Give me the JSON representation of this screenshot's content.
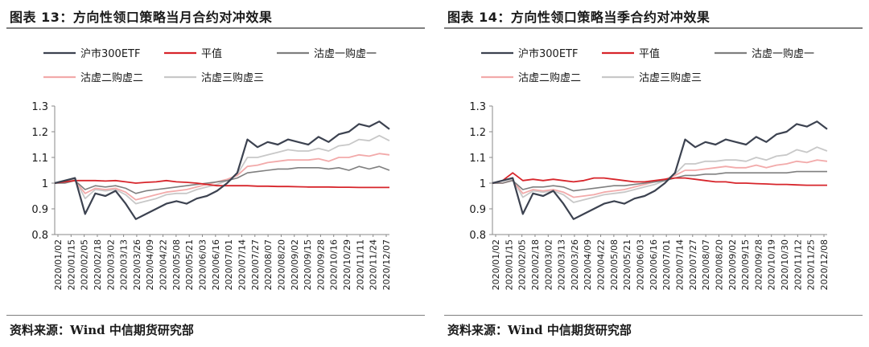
{
  "colors": {
    "hs300": "#3c4250",
    "flat": "#d7252b",
    "c1": "#7f7f7f",
    "c2": "#f2aaaa",
    "c3": "#c8c8c8",
    "rule": "#7f7f7f"
  },
  "source_text": "资料来源：Wind 中信期货研究部",
  "chart_data": [
    {
      "type": "line",
      "title": "图表 13：方向性领口策略当月合约对冲效果",
      "ylim": [
        0.8,
        1.3
      ],
      "yticks": [
        "1.3",
        "1.2",
        "1.1",
        "1",
        "0.9",
        "0.8"
      ],
      "x_tick_labels": [
        "2020/01/02",
        "2020/01/15",
        "2020/02/05",
        "2020/02/18",
        "2020/03/02",
        "2020/03/13",
        "2020/03/26",
        "2020/04/09",
        "2020/04/22",
        "2020/05/08",
        "2020/05/21",
        "2020/06/03",
        "2020/06/16",
        "2020/07/01",
        "2020/07/14",
        "2020/07/27",
        "2020/08/07",
        "2020/08/20",
        "2020/09/02",
        "2020/09/15",
        "2020/09/28",
        "2020/10/16",
        "2020/10/29",
        "2020/11/11",
        "2020/11/24",
        "2020/12/07"
      ],
      "legend": [
        "沪市300ETF",
        "平值",
        "沽虚一购虚一",
        "沽虚二购虚二",
        "沽虚三购虚三"
      ],
      "series": [
        {
          "name": "沪市300ETF",
          "values": [
            1.0,
            1.01,
            1.02,
            0.88,
            0.96,
            0.95,
            0.97,
            0.92,
            0.86,
            0.88,
            0.9,
            0.92,
            0.93,
            0.92,
            0.94,
            0.95,
            0.97,
            1.0,
            1.04,
            1.17,
            1.14,
            1.16,
            1.15,
            1.17,
            1.16,
            1.15,
            1.18,
            1.16,
            1.19,
            1.2,
            1.23,
            1.22,
            1.24,
            1.21
          ]
        },
        {
          "name": "平值",
          "values": [
            1.0,
            1.005,
            1.01,
            1.01,
            1.01,
            1.008,
            1.01,
            1.005,
            1.0,
            1.003,
            1.005,
            1.01,
            1.005,
            1.003,
            1.0,
            0.995,
            0.99,
            0.99,
            0.99,
            0.99,
            0.988,
            0.988,
            0.987,
            0.987,
            0.986,
            0.985,
            0.985,
            0.985,
            0.984,
            0.984,
            0.983,
            0.983,
            0.983,
            0.983
          ]
        },
        {
          "name": "沽虚一购虚一",
          "values": [
            1.0,
            1.0,
            1.01,
            0.975,
            0.99,
            0.985,
            0.99,
            0.98,
            0.96,
            0.97,
            0.975,
            0.98,
            0.985,
            0.99,
            0.995,
            1.0,
            1.005,
            1.01,
            1.02,
            1.04,
            1.045,
            1.05,
            1.055,
            1.055,
            1.06,
            1.06,
            1.06,
            1.055,
            1.06,
            1.05,
            1.065,
            1.055,
            1.065,
            1.05
          ]
        },
        {
          "name": "沽虚二购虚二",
          "values": [
            1.0,
            1.005,
            1.01,
            0.96,
            0.98,
            0.975,
            0.98,
            0.965,
            0.935,
            0.945,
            0.955,
            0.965,
            0.97,
            0.975,
            0.985,
            0.995,
            1.005,
            1.015,
            1.03,
            1.065,
            1.07,
            1.08,
            1.085,
            1.09,
            1.09,
            1.09,
            1.095,
            1.085,
            1.1,
            1.1,
            1.11,
            1.105,
            1.115,
            1.11
          ]
        },
        {
          "name": "沽虚三购虚三",
          "values": [
            1.0,
            1.005,
            1.015,
            0.94,
            0.975,
            0.97,
            0.975,
            0.955,
            0.92,
            0.93,
            0.94,
            0.955,
            0.96,
            0.96,
            0.975,
            0.985,
            0.995,
            1.01,
            1.035,
            1.1,
            1.1,
            1.11,
            1.12,
            1.13,
            1.125,
            1.125,
            1.135,
            1.125,
            1.145,
            1.15,
            1.17,
            1.165,
            1.185,
            1.165
          ]
        }
      ]
    },
    {
      "type": "line",
      "title": "图表 14：方向性领口策略当季合约对冲效果",
      "ylim": [
        0.8,
        1.3
      ],
      "yticks": [
        "1.3",
        "1.2",
        "1.1",
        "1",
        "0.9",
        "0.8"
      ],
      "x_tick_labels": [
        "2020/01/02",
        "2020/01/15",
        "2020/02/05",
        "2020/02/18",
        "2020/03/02",
        "2020/03/13",
        "2020/03/26",
        "2020/04/09",
        "2020/04/22",
        "2020/05/08",
        "2020/05/21",
        "2020/06/03",
        "2020/06/16",
        "2020/07/01",
        "2020/07/14",
        "2020/07/27",
        "2020/08/07",
        "2020/08/20",
        "2020/09/02",
        "2020/09/15",
        "2020/09/28",
        "2020/10/19",
        "2020/10/30",
        "2020/11/12",
        "2020/11/25",
        "2020/12/08"
      ],
      "legend": [
        "沪市300ETF",
        "平值",
        "沽虚一购虚一",
        "沽虚二购虚二",
        "沽虚三购虚三"
      ],
      "series": [
        {
          "name": "沪市300ETF",
          "values": [
            1.0,
            1.01,
            1.02,
            0.88,
            0.96,
            0.95,
            0.97,
            0.92,
            0.86,
            0.88,
            0.9,
            0.92,
            0.93,
            0.92,
            0.94,
            0.95,
            0.97,
            1.0,
            1.04,
            1.17,
            1.14,
            1.16,
            1.15,
            1.17,
            1.16,
            1.15,
            1.18,
            1.16,
            1.19,
            1.2,
            1.23,
            1.22,
            1.24,
            1.21
          ]
        },
        {
          "name": "平值",
          "values": [
            1.0,
            1.01,
            1.04,
            1.01,
            1.015,
            1.01,
            1.015,
            1.01,
            1.005,
            1.01,
            1.02,
            1.02,
            1.015,
            1.01,
            1.005,
            1.005,
            1.01,
            1.015,
            1.02,
            1.02,
            1.015,
            1.01,
            1.005,
            1.005,
            1.0,
            1.0,
            0.998,
            0.997,
            0.995,
            0.995,
            0.993,
            0.992,
            0.992,
            0.992
          ]
        },
        {
          "name": "沽虚一购虚一",
          "values": [
            1.0,
            1.0,
            1.01,
            0.975,
            0.985,
            0.985,
            0.99,
            0.985,
            0.97,
            0.975,
            0.98,
            0.985,
            0.99,
            0.99,
            0.995,
            1.0,
            1.005,
            1.01,
            1.02,
            1.03,
            1.03,
            1.035,
            1.035,
            1.04,
            1.04,
            1.04,
            1.04,
            1.04,
            1.04,
            1.04,
            1.045,
            1.045,
            1.045,
            1.045
          ]
        },
        {
          "name": "沽虚二购虚二",
          "values": [
            1.0,
            1.0,
            1.01,
            0.96,
            0.975,
            0.97,
            0.975,
            0.965,
            0.945,
            0.95,
            0.955,
            0.965,
            0.97,
            0.975,
            0.985,
            0.995,
            1.005,
            1.015,
            1.03,
            1.05,
            1.05,
            1.055,
            1.06,
            1.065,
            1.06,
            1.06,
            1.07,
            1.06,
            1.07,
            1.075,
            1.085,
            1.08,
            1.09,
            1.085
          ]
        },
        {
          "name": "沽虚三购虚三",
          "values": [
            1.0,
            1.0,
            1.015,
            0.945,
            0.97,
            0.965,
            0.97,
            0.955,
            0.925,
            0.935,
            0.945,
            0.955,
            0.96,
            0.965,
            0.975,
            0.985,
            0.995,
            1.01,
            1.035,
            1.075,
            1.075,
            1.085,
            1.085,
            1.09,
            1.09,
            1.085,
            1.1,
            1.09,
            1.105,
            1.11,
            1.13,
            1.12,
            1.14,
            1.125
          ]
        }
      ]
    }
  ]
}
